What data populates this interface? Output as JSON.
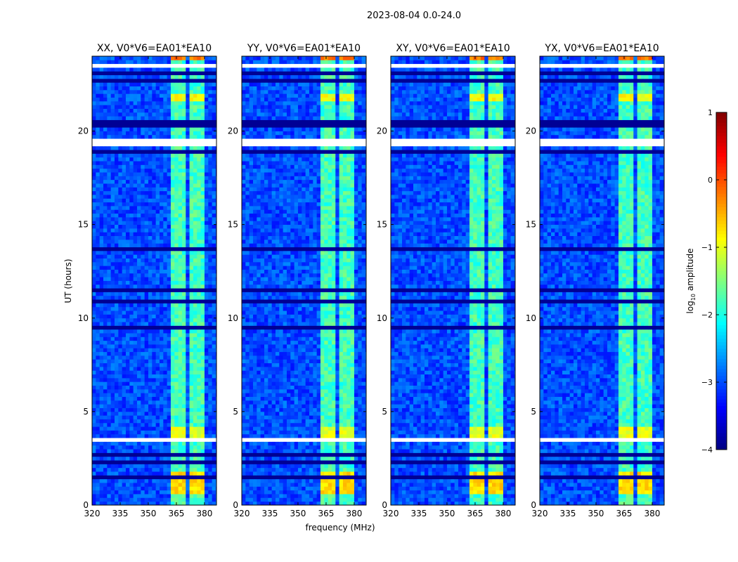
{
  "chart_data": {
    "type": "heatmap",
    "suptitle": "2023-08-04 0.0-24.0",
    "xlabel": "frequency (MHz)",
    "ylabel": "UT (hours)",
    "xlim": [
      320,
      386.4
    ],
    "ylim": [
      0,
      24
    ],
    "xticks": [
      "320",
      "335",
      "350",
      "365",
      "380"
    ],
    "xtick_values": [
      320,
      335,
      350,
      365,
      380
    ],
    "yticks": [
      "0",
      "5",
      "10",
      "15",
      "20"
    ],
    "ytick_values": [
      0,
      5,
      10,
      15,
      20
    ],
    "panels": [
      {
        "title": "XX, V0*V6=EA01*EA10",
        "pol": "XX"
      },
      {
        "title": "YY, V0*V6=EA01*EA10",
        "pol": "YY"
      },
      {
        "title": "XY, V0*V6=EA01*EA10",
        "pol": "XY"
      },
      {
        "title": "YX, V0*V6=EA01*EA10",
        "pol": "YX"
      }
    ],
    "background_log_amplitude": -3.0,
    "rfi_band_mhz": [
      [
        362,
        366
      ],
      [
        367,
        371
      ],
      [
        372,
        375.5
      ],
      [
        376,
        380
      ]
    ],
    "rfi_band_log_amplitude": -1.8,
    "bright_intervals": [
      {
        "ut": [
          0.7,
          1.9
        ],
        "log_amplitude": -0.7
      },
      {
        "ut": [
          3.6,
          4.3
        ],
        "log_amplitude": -1.0
      },
      {
        "ut": [
          21.5,
          21.9
        ],
        "log_amplitude": -0.9
      },
      {
        "ut": [
          23.75,
          24.0
        ],
        "log_amplitude": -0.2
      }
    ],
    "flagged_ut_intervals": [
      [
        0.55,
        0.65
      ],
      [
        3.4,
        3.55
      ],
      [
        4.35,
        4.42
      ],
      [
        7.0,
        7.05
      ],
      [
        12.4,
        12.45
      ],
      [
        14.9,
        15.0
      ],
      [
        19.2,
        19.5
      ],
      [
        21.3,
        21.4
      ],
      [
        22.1,
        22.2
      ],
      [
        23.4,
        23.65
      ]
    ],
    "dark_ut_rows": [
      1.5,
      2.3,
      2.8,
      9.5,
      10.9,
      11.5,
      13.6,
      18.9,
      20.3,
      20.5,
      22.6,
      23.1
    ],
    "colorbar": {
      "label_prefix": "log",
      "label_sub": "10",
      "label_suffix": " amplitude",
      "range": [
        -4,
        1
      ],
      "ticks": [
        "1",
        "0",
        "−1",
        "−2",
        "−3",
        "−4"
      ],
      "tick_values": [
        1,
        0,
        -1,
        -2,
        -3,
        -4
      ],
      "colormap": "jet"
    }
  }
}
